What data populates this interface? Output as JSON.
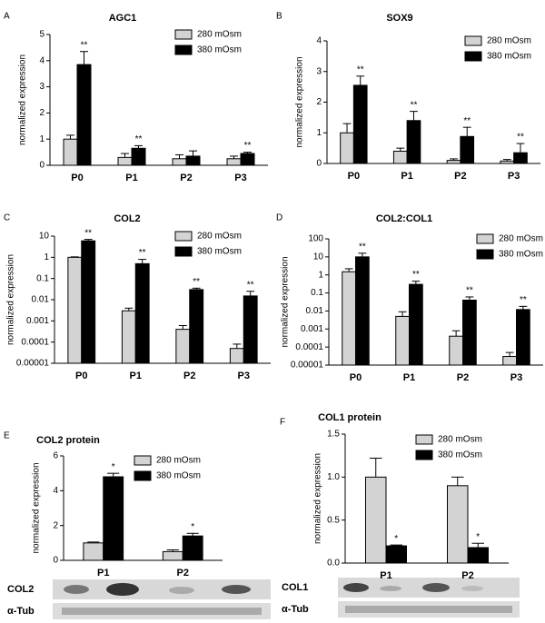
{
  "chart_data": [
    {
      "type": "bar",
      "panel": "A",
      "title": "AGC1",
      "y_label": "normalized expression",
      "categories": [
        "P0",
        "P1",
        "P2",
        "P3"
      ],
      "series": [
        {
          "name": "280 mOsm",
          "color": "#d3d3d3",
          "values": [
            1.0,
            0.3,
            0.25,
            0.25
          ],
          "errors": [
            0.15,
            0.15,
            0.15,
            0.1
          ]
        },
        {
          "name": "380 mOsm",
          "color": "#000000",
          "values": [
            3.85,
            0.65,
            0.35,
            0.45
          ],
          "errors": [
            0.5,
            0.1,
            0.2,
            0.05
          ],
          "significance": [
            "**",
            "**",
            null,
            "**"
          ]
        }
      ],
      "ylim": [
        0,
        5
      ],
      "yticks": [
        0,
        1,
        2,
        3,
        4,
        5
      ],
      "log_scale": false
    },
    {
      "type": "bar",
      "panel": "B",
      "title": "SOX9",
      "y_label": "normalized expression",
      "categories": [
        "P0",
        "P1",
        "P2",
        "P3"
      ],
      "series": [
        {
          "name": "280 mOsm",
          "color": "#d3d3d3",
          "values": [
            1.0,
            0.4,
            0.1,
            0.08
          ],
          "errors": [
            0.3,
            0.1,
            0.05,
            0.05
          ]
        },
        {
          "name": "380 mOsm",
          "color": "#000000",
          "values": [
            2.55,
            1.4,
            0.88,
            0.35
          ],
          "errors": [
            0.3,
            0.3,
            0.3,
            0.3
          ],
          "significance": [
            "**",
            "**",
            "**",
            "**"
          ]
        }
      ],
      "ylim": [
        0,
        4
      ],
      "yticks": [
        0,
        1,
        2,
        3,
        4
      ],
      "log_scale": false
    },
    {
      "type": "bar",
      "panel": "C",
      "title": "COL2",
      "y_label": "normalized expression",
      "categories": [
        "P0",
        "P1",
        "P2",
        "P3"
      ],
      "series": [
        {
          "name": "280 mOsm",
          "color": "#d3d3d3",
          "values": [
            1,
            0.003,
            0.0004,
            5e-05
          ],
          "errors": [
            0.05,
            0.001,
            0.0002,
            3e-05
          ]
        },
        {
          "name": "380 mOsm",
          "color": "#000000",
          "values": [
            6,
            0.5,
            0.03,
            0.015
          ],
          "errors": [
            1,
            0.3,
            0.005,
            0.01
          ],
          "significance": [
            "**",
            "**",
            "**",
            "**"
          ]
        }
      ],
      "ylim": [
        1e-05,
        10
      ],
      "yticks": [
        1e-05,
        0.0001,
        0.001,
        0.01,
        0.1,
        1,
        10
      ],
      "log_scale": true
    },
    {
      "type": "bar",
      "panel": "D",
      "title": "COL2:COL1",
      "y_label": "normalized expression",
      "categories": [
        "P0",
        "P1",
        "P2",
        "P3"
      ],
      "series": [
        {
          "name": "280 mOsm",
          "color": "#d3d3d3",
          "values": [
            1.5,
            0.005,
            0.0004,
            3e-05
          ],
          "errors": [
            0.7,
            0.004,
            0.0004,
            2e-05
          ]
        },
        {
          "name": "380 mOsm",
          "color": "#000000",
          "values": [
            10,
            0.3,
            0.04,
            0.012
          ],
          "errors": [
            6,
            0.15,
            0.02,
            0.006
          ],
          "significance": [
            "**",
            "**",
            "**",
            "**"
          ]
        }
      ],
      "ylim": [
        1e-05,
        100
      ],
      "yticks": [
        1e-05,
        0.0001,
        0.001,
        0.01,
        0.1,
        1,
        10,
        100
      ],
      "log_scale": true
    },
    {
      "type": "bar",
      "panel": "E",
      "title": "COL2 protein",
      "y_label": "normalized expression",
      "categories": [
        "P1",
        "P2"
      ],
      "series": [
        {
          "name": "280 mOsm",
          "color": "#d3d3d3",
          "values": [
            1.0,
            0.5
          ],
          "errors": [
            0.05,
            0.1
          ]
        },
        {
          "name": "380 mOsm",
          "color": "#000000",
          "values": [
            4.8,
            1.4
          ],
          "errors": [
            0.2,
            0.15
          ],
          "significance": [
            "*",
            "*"
          ]
        }
      ],
      "ylim": [
        0,
        6
      ],
      "yticks": [
        0,
        2,
        4,
        6
      ],
      "log_scale": false,
      "blot_labels": [
        "COL2",
        "α-Tub"
      ]
    },
    {
      "type": "bar",
      "panel": "F",
      "title": "COL1 protein",
      "y_label": "normalized expression",
      "categories": [
        "P1",
        "P2"
      ],
      "series": [
        {
          "name": "280 mOsm",
          "color": "#d3d3d3",
          "values": [
            1.0,
            0.9
          ],
          "errors": [
            0.22,
            0.1
          ]
        },
        {
          "name": "380 mOsm",
          "color": "#000000",
          "values": [
            0.2,
            0.18
          ],
          "errors": [
            0.01,
            0.05
          ],
          "significance": [
            "*",
            "*"
          ]
        }
      ],
      "ylim": [
        0,
        1.5
      ],
      "yticks": [
        {
          "value": 0,
          "label": "0.0"
        },
        0.5,
        {
          "value": 1,
          "label": "1.0"
        },
        1.5
      ],
      "log_scale": false,
      "blot_labels": [
        "COL1",
        "α-Tub"
      ]
    }
  ]
}
